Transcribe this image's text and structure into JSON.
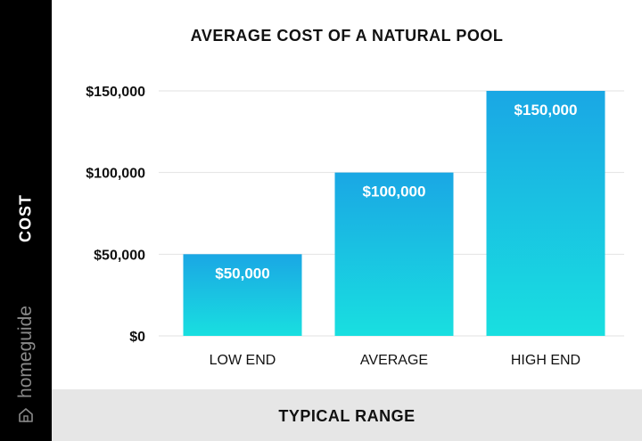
{
  "chart_data": {
    "type": "bar",
    "title": "AVERAGE COST OF A NATURAL POOL",
    "ylabel": "COST",
    "xlabel": "TYPICAL RANGE",
    "categories": [
      "LOW END",
      "AVERAGE",
      "HIGH END"
    ],
    "values": [
      50000,
      100000,
      150000
    ],
    "value_labels": [
      "$50,000",
      "$100,000",
      "$150,000"
    ],
    "ylim": [
      0,
      150000
    ],
    "yticks": [
      0,
      50000,
      100000,
      150000
    ],
    "ytick_labels": [
      "$0",
      "$50,000",
      "$100,000",
      "$150,000"
    ],
    "grid": true,
    "legend": "none",
    "colors": {
      "bar_top": "#1aa7e4",
      "bar_bottom": "#19dfe0",
      "grid": "#e2e2e2"
    }
  },
  "branding": {
    "name": "homeguide",
    "icon": "home-icon",
    "sidebar_color": "#000000",
    "brand_color": "#8a8a8a"
  }
}
